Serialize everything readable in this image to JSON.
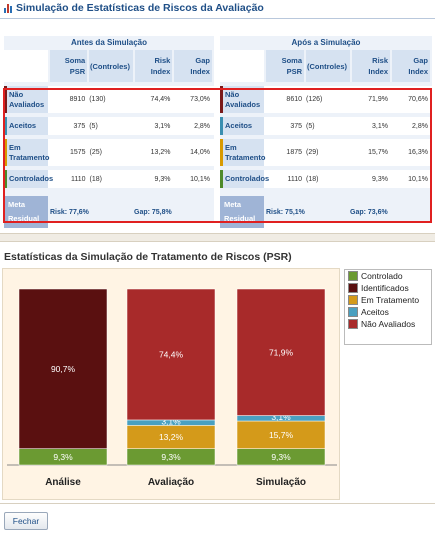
{
  "page": {
    "title": "Simulação de Estatísticas de Riscos da Avaliação",
    "close_button": "Fechar"
  },
  "before": {
    "heading": "Antes da Simulação",
    "columns": [
      "Soma PSR",
      "(Controles)",
      "Risk Index",
      "Gap Index"
    ],
    "rows": [
      {
        "label": "Não Avaliados",
        "color": "#7a1a1a",
        "soma": "8910",
        "controles": "(130)",
        "risk": "74,4%",
        "gap": "73,0%"
      },
      {
        "label": "Aceitos",
        "color": "#3a8fb0",
        "soma": "375",
        "controles": "(5)",
        "risk": "3,1%",
        "gap": "2,8%"
      },
      {
        "label": "Em Tratamento",
        "color": "#d89a00",
        "soma": "1575",
        "controles": "(25)",
        "risk": "13,2%",
        "gap": "14,0%"
      },
      {
        "label": "Controlados",
        "color": "#4e8a2a",
        "soma": "1110",
        "controles": "(18)",
        "risk": "9,3%",
        "gap": "10,1%"
      }
    ],
    "meta": {
      "label": "Meta Residual",
      "risk": "Risk: 77,6%",
      "gap": "Gap: 75,8%"
    }
  },
  "after": {
    "heading": "Após a Simulação",
    "columns": [
      "Soma PSR",
      "(Controles)",
      "Risk Index",
      "Gap Index"
    ],
    "rows": [
      {
        "label": "Não Avaliados",
        "color": "#7a1a1a",
        "soma": "8610",
        "controles": "(126)",
        "risk": "71,9%",
        "gap": "70,6%"
      },
      {
        "label": "Aceitos",
        "color": "#3a8fb0",
        "soma": "375",
        "controles": "(5)",
        "risk": "3,1%",
        "gap": "2,8%"
      },
      {
        "label": "Em Tratamento",
        "color": "#d89a00",
        "soma": "1875",
        "controles": "(29)",
        "risk": "15,7%",
        "gap": "16,3%"
      },
      {
        "label": "Controlados",
        "color": "#4e8a2a",
        "soma": "1110",
        "controles": "(18)",
        "risk": "9,3%",
        "gap": "10,1%"
      }
    ],
    "meta": {
      "label": "Meta Residual",
      "risk": "Risk: 75,1%",
      "gap": "Gap: 73,6%"
    }
  },
  "chart_data": {
    "type": "bar",
    "stacked": true,
    "title": "Estatísticas da Simulação de Tratamento de Riscos (PSR)",
    "categories": [
      "Análise",
      "Avaliação",
      "Simulação"
    ],
    "series": [
      {
        "name": "Controlado",
        "color": "#6b9a32",
        "values": [
          9.3,
          9.3,
          9.3
        ],
        "labels": [
          "9,3%",
          "9,3%",
          "9,3%"
        ]
      },
      {
        "name": "Identificados",
        "color": "#5a1010",
        "values": [
          90.7,
          0,
          0
        ],
        "labels": [
          "90,7%",
          "",
          ""
        ]
      },
      {
        "name": "Em Tratamento",
        "color": "#d49a1a",
        "values": [
          0,
          13.2,
          15.7
        ],
        "labels": [
          "",
          "13,2%",
          "15,7%"
        ]
      },
      {
        "name": "Aceitos",
        "color": "#4aa0c0",
        "values": [
          0,
          3.1,
          3.1
        ],
        "labels": [
          "",
          "3,1%",
          "3,1%"
        ]
      },
      {
        "name": "Não Avaliados",
        "color": "#a82a2a",
        "values": [
          0,
          74.4,
          71.9
        ],
        "labels": [
          "",
          "74,4%",
          "71,9%"
        ]
      }
    ],
    "ylim": [
      0,
      100
    ],
    "legend": "right"
  }
}
